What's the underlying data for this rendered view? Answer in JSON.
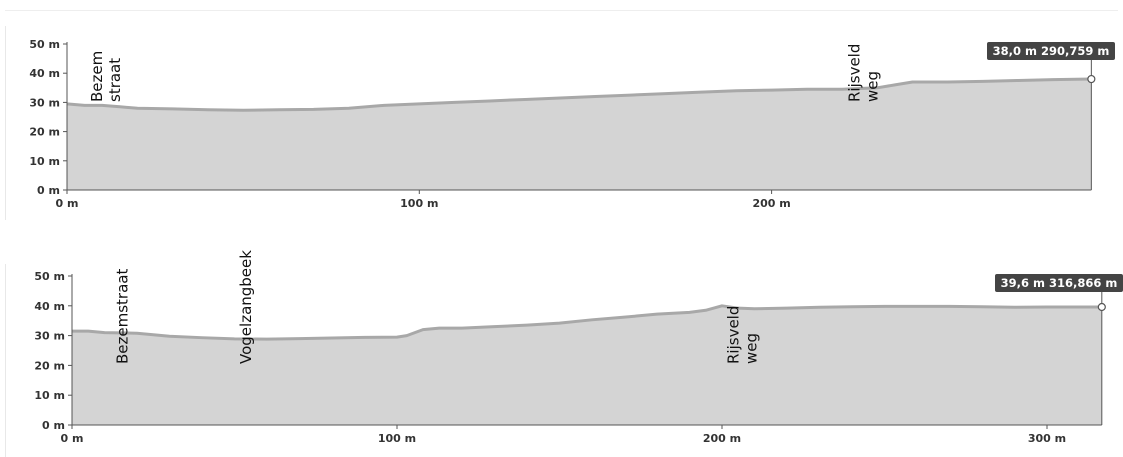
{
  "chart_data": [
    {
      "type": "area",
      "xunit": "m",
      "yunit": "m",
      "xlim": [
        0,
        290.759
      ],
      "ylim": [
        0,
        50
      ],
      "yticks": [
        {
          "value": 0,
          "label": "0 m"
        },
        {
          "value": 10,
          "label": "10 m"
        },
        {
          "value": 20,
          "label": "20 m"
        },
        {
          "value": 30,
          "label": "30 m"
        },
        {
          "value": 40,
          "label": "40 m"
        },
        {
          "value": 50,
          "label": "50 m"
        }
      ],
      "xticks": [
        {
          "value": 0,
          "label": "0 m"
        },
        {
          "value": 100,
          "label": "100 m"
        },
        {
          "value": 200,
          "label": "200 m"
        }
      ],
      "x": [
        0,
        5,
        10,
        15,
        20,
        30,
        40,
        50,
        60,
        70,
        80,
        90,
        100,
        110,
        120,
        130,
        140,
        150,
        160,
        170,
        180,
        190,
        200,
        210,
        220,
        230,
        235,
        240,
        245,
        250,
        260,
        270,
        280,
        290.759
      ],
      "y": [
        29.5,
        29.0,
        29.0,
        28.5,
        28.0,
        27.8,
        27.5,
        27.3,
        27.5,
        27.6,
        28.0,
        29.0,
        29.5,
        30.0,
        30.5,
        31.0,
        31.5,
        32.0,
        32.5,
        33.0,
        33.5,
        34.0,
        34.2,
        34.5,
        34.5,
        35.0,
        36.0,
        37.0,
        37.0,
        37.0,
        37.2,
        37.5,
        37.8,
        38.0
      ],
      "labels": [
        {
          "x": 10,
          "lines": [
            "Bezem",
            "straat"
          ]
        },
        {
          "x": 225,
          "lines": [
            "Rijsveld",
            "weg"
          ]
        }
      ],
      "marker": {
        "text": "38,0 m 290,759 m"
      }
    },
    {
      "type": "area",
      "xunit": "m",
      "yunit": "m",
      "xlim": [
        0,
        316.866
      ],
      "ylim": [
        0,
        50
      ],
      "yticks": [
        {
          "value": 0,
          "label": "0 m"
        },
        {
          "value": 10,
          "label": "10 m"
        },
        {
          "value": 20,
          "label": "20 m"
        },
        {
          "value": 30,
          "label": "30 m"
        },
        {
          "value": 40,
          "label": "40 m"
        },
        {
          "value": 50,
          "label": "50 m"
        }
      ],
      "xticks": [
        {
          "value": 0,
          "label": "0 m"
        },
        {
          "value": 100,
          "label": "100 m"
        },
        {
          "value": 200,
          "label": "200 m"
        },
        {
          "value": 300,
          "label": "300 m"
        }
      ],
      "x": [
        0,
        5,
        10,
        20,
        30,
        40,
        50,
        60,
        70,
        80,
        90,
        100,
        103,
        108,
        113,
        120,
        130,
        140,
        150,
        160,
        170,
        180,
        190,
        195,
        200,
        205,
        210,
        220,
        230,
        240,
        250,
        260,
        270,
        280,
        290,
        300,
        316.866
      ],
      "y": [
        31.5,
        31.5,
        31.0,
        30.8,
        29.8,
        29.3,
        28.9,
        28.8,
        29.0,
        29.2,
        29.4,
        29.5,
        30.0,
        32.0,
        32.5,
        32.5,
        33.0,
        33.5,
        34.2,
        35.3,
        36.2,
        37.2,
        37.8,
        38.5,
        40.0,
        39.2,
        39.0,
        39.2,
        39.5,
        39.7,
        39.8,
        39.8,
        39.8,
        39.7,
        39.5,
        39.6,
        39.6
      ],
      "labels": [
        {
          "x": 17,
          "lines": [
            "Bezemstraat"
          ]
        },
        {
          "x": 55,
          "lines": [
            "Vogelzangbeek"
          ]
        },
        {
          "x": 205,
          "lines": [
            "Rijsveld",
            "weg"
          ]
        }
      ],
      "marker": {
        "text": "39,6 m 316,866 m"
      }
    }
  ],
  "colors": {
    "fill": "#d4d4d4",
    "line": "#a8a8a8",
    "axis": "#555555",
    "badge": "#444444"
  }
}
